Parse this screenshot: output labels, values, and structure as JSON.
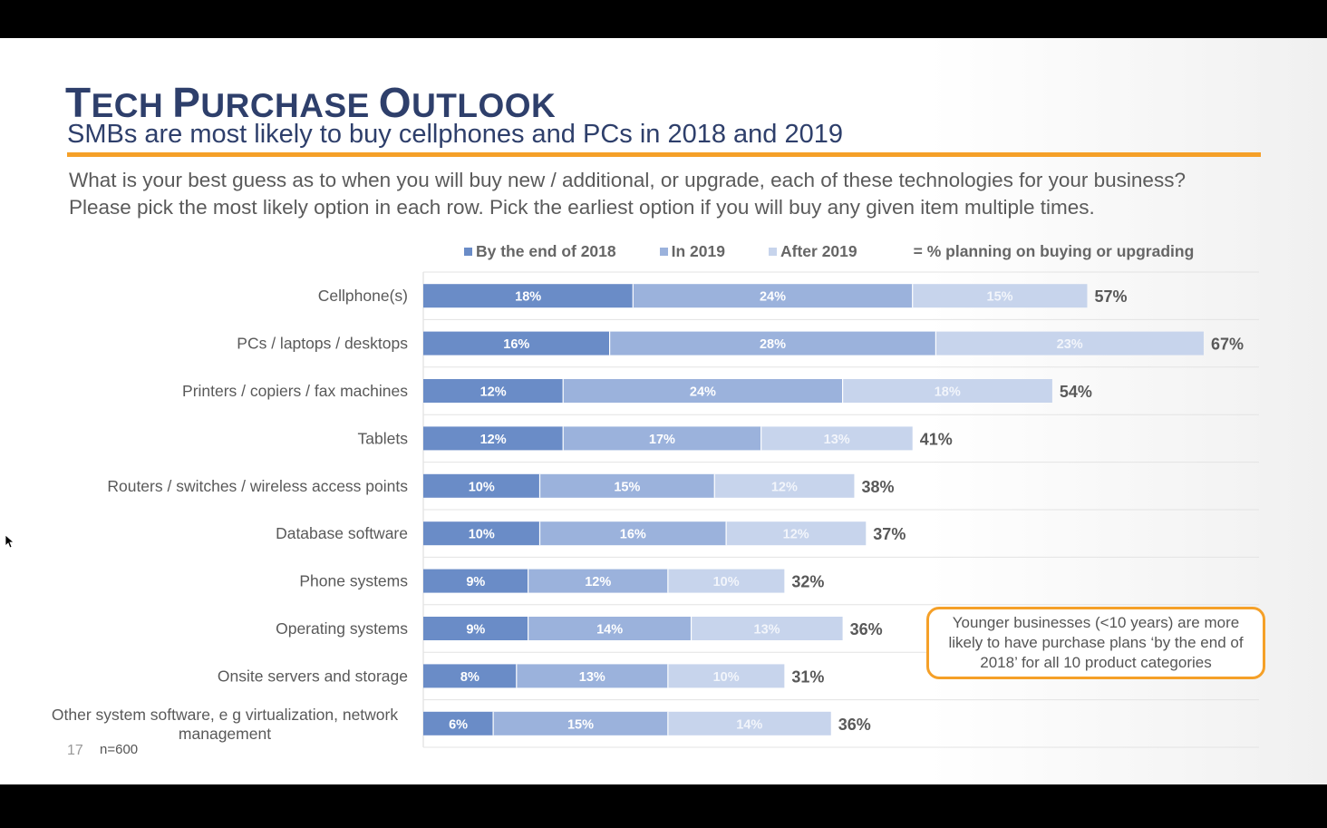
{
  "slide": {
    "title": "Tech Purchase Outlook",
    "subtitle": "SMBs are most likely to buy cellphones and PCs in 2018 and 2019",
    "question_line1": "What is your best guess as to when you will buy new / additional, or upgrade, each of these technologies for your business?",
    "question_line2": "Please pick the most likely option in each row. Pick the earliest option if you will buy any given item multiple times.",
    "callout": "Younger businesses (<10 years) are more likely to have purchase plans ‘by the end of 2018’ for all 10 product categories",
    "page_number": "17",
    "sample_size": "n=600"
  },
  "legend": {
    "item1": "By the end of 2018",
    "item2": "In 2019",
    "item3": "After 2019",
    "item4": "= % planning on buying or upgrading"
  },
  "colors": {
    "by_end_2018": "#6a8cc7",
    "in_2019": "#9bb2dc",
    "after_2019": "#c7d4ec",
    "accent": "#f5a028",
    "title": "#2e3f6b"
  },
  "chart_data": {
    "type": "bar",
    "orientation": "horizontal",
    "stacked": true,
    "categories": [
      "Cellphone(s)",
      "PCs / laptops / desktops",
      "Printers / copiers / fax machines",
      "Tablets",
      "Routers / switches / wireless access points",
      "Database software",
      "Phone systems",
      "Operating systems",
      "Onsite servers and storage",
      "Other system software, e g  virtualization, network management"
    ],
    "series": [
      {
        "name": "By the end of 2018",
        "values": [
          18,
          16,
          12,
          12,
          10,
          10,
          9,
          9,
          8,
          6
        ]
      },
      {
        "name": "In 2019",
        "values": [
          24,
          28,
          24,
          17,
          15,
          16,
          12,
          14,
          13,
          15
        ]
      },
      {
        "name": "After 2019",
        "values": [
          15,
          23,
          18,
          13,
          12,
          12,
          10,
          13,
          10,
          14
        ]
      }
    ],
    "totals": [
      57,
      67,
      54,
      41,
      38,
      37,
      32,
      36,
      31,
      36
    ],
    "unit": "%",
    "legend_position": "top"
  }
}
